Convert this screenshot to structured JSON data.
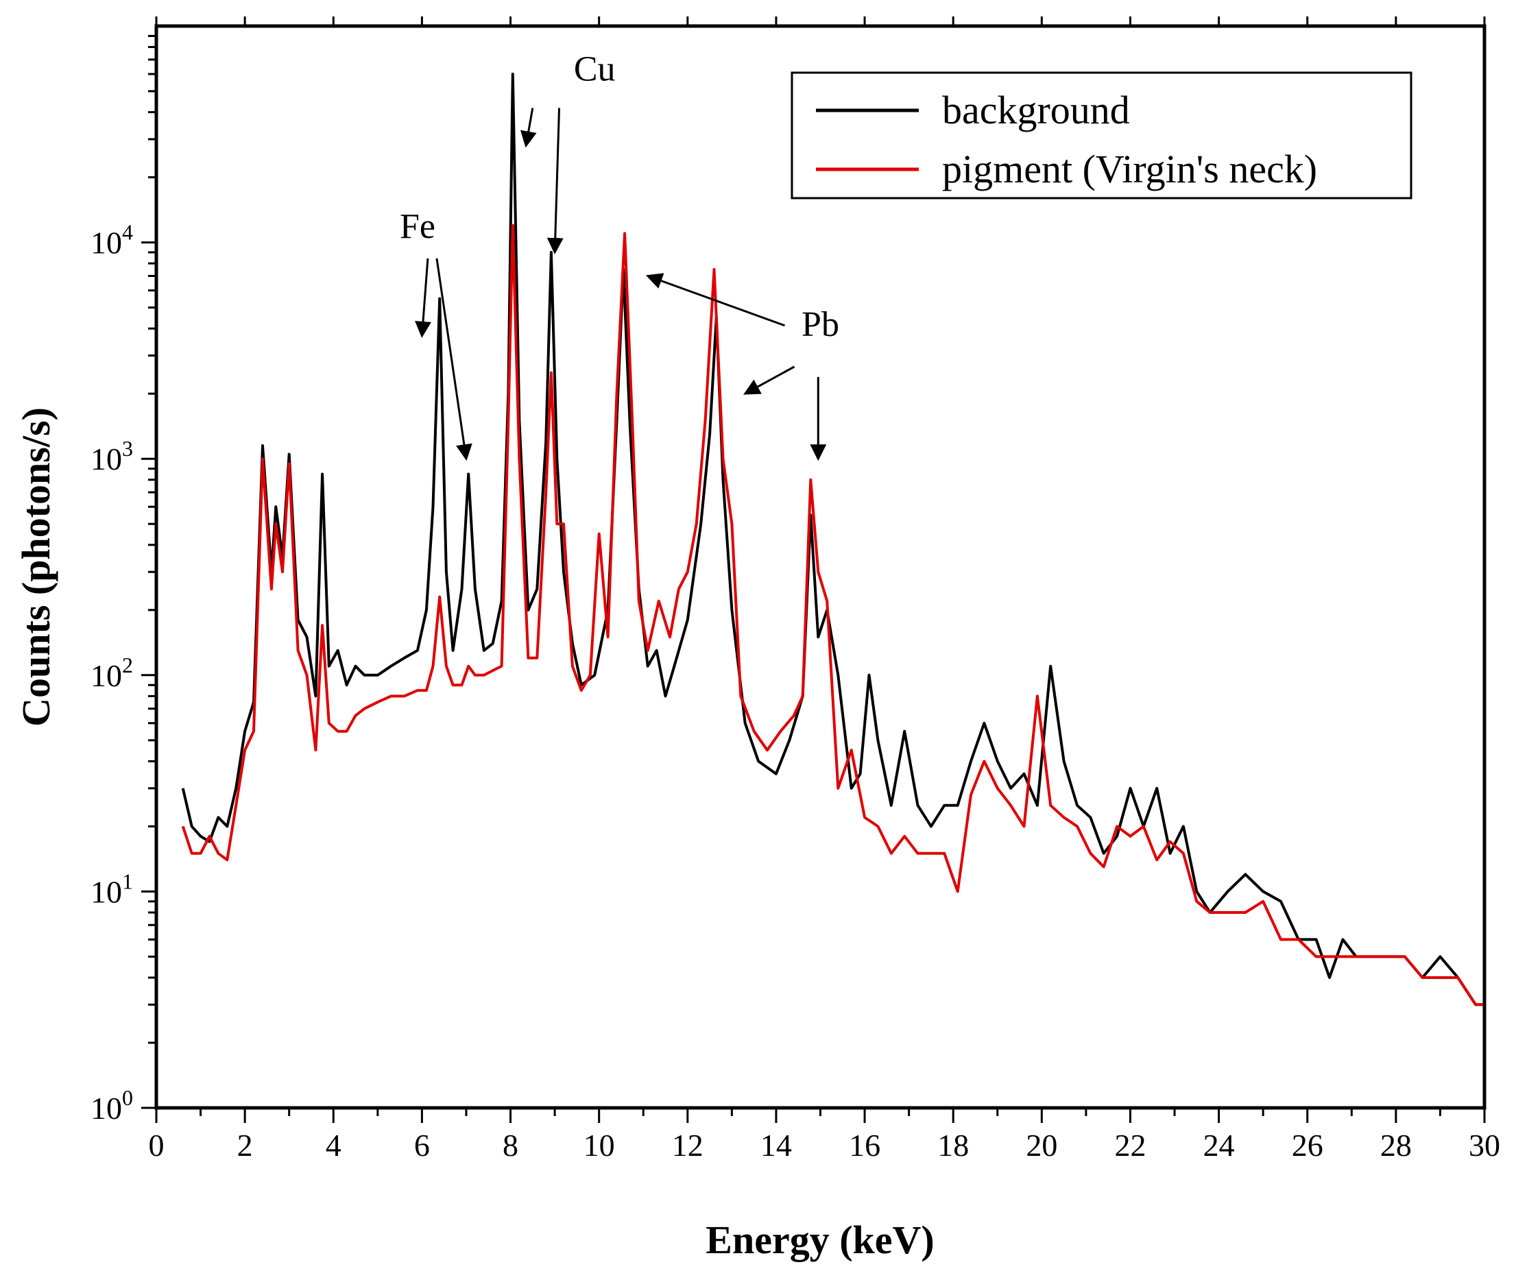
{
  "chart_data": {
    "type": "line",
    "title": "",
    "xlabel": "Energy (keV)",
    "ylabel": "Counts (photons/s)",
    "xlim": [
      0,
      30
    ],
    "ylim": [
      1,
      100000
    ],
    "yscale": "log",
    "grid": false,
    "x_ticks": [
      0,
      2,
      4,
      6,
      8,
      10,
      12,
      14,
      16,
      18,
      20,
      22,
      24,
      26,
      28,
      30
    ],
    "x_tick_labels": [
      "0",
      "2",
      "4",
      "6",
      "8",
      "10",
      "12",
      "14",
      "16",
      "18",
      "20",
      "22",
      "24",
      "26",
      "28",
      "30"
    ],
    "y_ticks": [
      {
        "value": 1,
        "base": "10",
        "exp": "0"
      },
      {
        "value": 10,
        "base": "10",
        "exp": "1"
      },
      {
        "value": 100,
        "base": "10",
        "exp": "2"
      },
      {
        "value": 1000,
        "base": "10",
        "exp": "3"
      },
      {
        "value": 10000,
        "base": "10",
        "exp": "4"
      }
    ],
    "legend": {
      "placement": "top-right",
      "entries": [
        {
          "label": "background",
          "color": "#000000"
        },
        {
          "label": "pigment (Virgin's neck)",
          "color": "#e00000"
        }
      ]
    },
    "series": [
      {
        "name": "background",
        "color": "#000000",
        "x": [
          0.6,
          0.8,
          1.0,
          1.2,
          1.4,
          1.6,
          1.8,
          2.0,
          2.2,
          2.4,
          2.6,
          2.7,
          2.85,
          3.0,
          3.2,
          3.4,
          3.6,
          3.75,
          3.9,
          4.1,
          4.3,
          4.5,
          4.7,
          5.0,
          5.3,
          5.6,
          5.9,
          6.1,
          6.25,
          6.4,
          6.55,
          6.7,
          6.9,
          7.05,
          7.2,
          7.4,
          7.6,
          7.8,
          7.95,
          8.05,
          8.2,
          8.4,
          8.6,
          8.8,
          8.92,
          9.05,
          9.2,
          9.4,
          9.6,
          9.9,
          10.2,
          10.4,
          10.55,
          10.7,
          10.9,
          11.1,
          11.3,
          11.5,
          11.7,
          12.0,
          12.3,
          12.5,
          12.65,
          12.8,
          13.0,
          13.3,
          13.6,
          14.0,
          14.3,
          14.6,
          14.78,
          14.95,
          15.15,
          15.4,
          15.7,
          15.9,
          16.1,
          16.3,
          16.6,
          16.9,
          17.2,
          17.5,
          17.8,
          18.1,
          18.4,
          18.7,
          19.0,
          19.3,
          19.6,
          19.9,
          20.2,
          20.5,
          20.8,
          21.1,
          21.4,
          21.7,
          22.0,
          22.3,
          22.6,
          22.9,
          23.2,
          23.5,
          23.8,
          24.2,
          24.6,
          25.0,
          25.4,
          25.8,
          26.2,
          26.5,
          26.8,
          27.1,
          27.4,
          27.8,
          28.2,
          28.6,
          29.0,
          29.4,
          29.8,
          30.0
        ],
        "y": [
          30,
          20,
          18,
          17,
          22,
          20,
          30,
          55,
          75,
          1150,
          300,
          600,
          350,
          1050,
          180,
          150,
          80,
          850,
          110,
          130,
          90,
          110,
          100,
          100,
          110,
          120,
          130,
          200,
          600,
          5500,
          300,
          130,
          250,
          850,
          250,
          130,
          140,
          220,
          2000,
          60000,
          1500,
          200,
          250,
          1200,
          9000,
          1000,
          300,
          140,
          90,
          100,
          200,
          1500,
          7500,
          1400,
          250,
          110,
          130,
          80,
          110,
          180,
          500,
          1300,
          4500,
          800,
          200,
          60,
          40,
          35,
          50,
          80,
          550,
          150,
          200,
          100,
          30,
          35,
          100,
          50,
          25,
          55,
          25,
          20,
          25,
          25,
          40,
          60,
          40,
          30,
          35,
          25,
          110,
          40,
          25,
          22,
          15,
          18,
          30,
          20,
          30,
          15,
          20,
          10,
          8,
          10,
          12,
          10,
          9,
          6,
          6,
          4,
          6,
          5,
          5,
          5,
          5,
          4,
          5,
          4,
          3,
          3
        ]
      },
      {
        "name": "pigment (Virgin's neck)",
        "color": "#e00000",
        "x": [
          0.6,
          0.8,
          1.0,
          1.2,
          1.4,
          1.6,
          1.8,
          2.0,
          2.2,
          2.4,
          2.6,
          2.7,
          2.85,
          3.0,
          3.2,
          3.4,
          3.6,
          3.75,
          3.9,
          4.1,
          4.3,
          4.5,
          4.7,
          5.0,
          5.3,
          5.6,
          5.9,
          6.1,
          6.25,
          6.4,
          6.55,
          6.7,
          6.9,
          7.05,
          7.2,
          7.4,
          7.6,
          7.8,
          7.95,
          8.05,
          8.2,
          8.4,
          8.6,
          8.8,
          8.92,
          9.05,
          9.2,
          9.4,
          9.6,
          9.8,
          10.0,
          10.2,
          10.4,
          10.58,
          10.75,
          10.9,
          11.1,
          11.35,
          11.6,
          11.8,
          12.0,
          12.2,
          12.4,
          12.6,
          12.8,
          13.0,
          13.2,
          13.5,
          13.8,
          14.1,
          14.4,
          14.6,
          14.78,
          14.95,
          15.15,
          15.4,
          15.7,
          16.0,
          16.3,
          16.6,
          16.9,
          17.2,
          17.5,
          17.8,
          18.1,
          18.4,
          18.7,
          19.0,
          19.3,
          19.6,
          19.9,
          20.2,
          20.5,
          20.8,
          21.1,
          21.4,
          21.7,
          22.0,
          22.3,
          22.6,
          22.9,
          23.2,
          23.5,
          23.8,
          24.2,
          24.6,
          25.0,
          25.4,
          25.8,
          26.2,
          26.6,
          27.0,
          27.4,
          27.8,
          28.2,
          28.6,
          29.0,
          29.4,
          29.8,
          30.0
        ],
        "y": [
          20,
          15,
          15,
          18,
          15,
          14,
          25,
          45,
          55,
          1000,
          250,
          500,
          300,
          950,
          130,
          100,
          45,
          170,
          60,
          55,
          55,
          65,
          70,
          75,
          80,
          80,
          85,
          85,
          110,
          230,
          110,
          90,
          90,
          110,
          100,
          100,
          105,
          110,
          1500,
          12000,
          1000,
          120,
          120,
          700,
          2500,
          500,
          500,
          110,
          85,
          100,
          450,
          150,
          2000,
          11000,
          1500,
          220,
          130,
          220,
          150,
          250,
          300,
          500,
          1500,
          7500,
          1000,
          500,
          80,
          55,
          45,
          55,
          65,
          80,
          800,
          300,
          220,
          30,
          45,
          22,
          20,
          15,
          18,
          15,
          15,
          15,
          10,
          28,
          40,
          30,
          25,
          20,
          80,
          25,
          22,
          20,
          15,
          13,
          20,
          18,
          20,
          14,
          17,
          15,
          9,
          8,
          8,
          8,
          9,
          6,
          6,
          5,
          5,
          5,
          5,
          5,
          5,
          4,
          4,
          4,
          3,
          3
        ]
      }
    ],
    "annotations": [
      {
        "text": "Cu",
        "targets": [
          [
            8.35,
            28000
          ],
          [
            9.0,
            9000
          ]
        ]
      },
      {
        "text": "Fe",
        "targets": [
          [
            6.0,
            3700
          ],
          [
            7.0,
            1000
          ]
        ]
      },
      {
        "text": "Pb",
        "targets": [
          [
            11.1,
            7000
          ],
          [
            13.3,
            2000
          ],
          [
            14.95,
            1000
          ]
        ]
      }
    ]
  }
}
